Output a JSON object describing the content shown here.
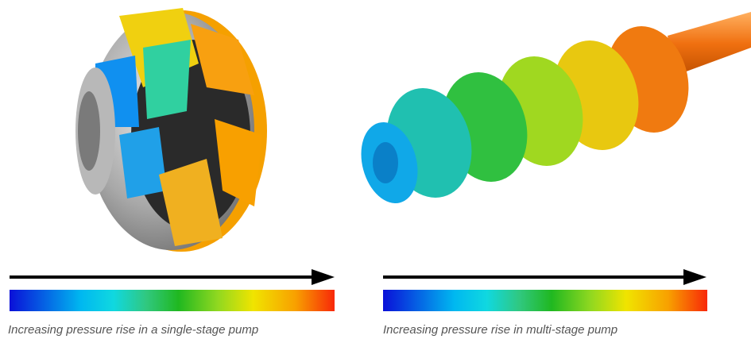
{
  "captions": [
    "Increasing pressure rise in a single-stage pump",
    "Increasing pressure rise in multi-stage pump"
  ]
}
